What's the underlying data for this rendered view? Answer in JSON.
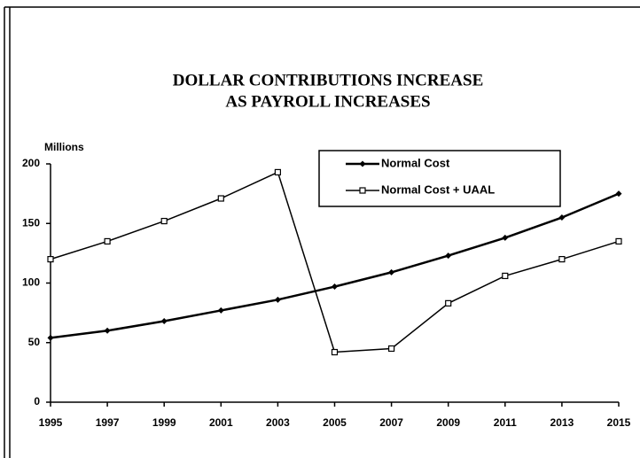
{
  "chart_data": {
    "type": "line",
    "title": "DOLLAR CONTRIBUTIONS INCREASE",
    "subtitle": "AS PAYROLL INCREASES",
    "y_label": "Millions",
    "x": [
      1995,
      1997,
      1999,
      2001,
      2003,
      2005,
      2007,
      2009,
      2011,
      2013,
      2015
    ],
    "xlim": [
      1995,
      2015
    ],
    "xticks": [
      1995,
      1997,
      1999,
      2001,
      2003,
      2005,
      2007,
      2009,
      2011,
      2013,
      2015
    ],
    "ylim": [
      0,
      200
    ],
    "yticks": [
      0,
      50,
      100,
      150,
      200
    ],
    "grid": false,
    "legend": "upper right",
    "series": [
      {
        "name": "Normal Cost",
        "color": "#000000",
        "marker": "filled",
        "values": [
          54,
          60,
          68,
          77,
          86,
          97,
          109,
          123,
          138,
          155,
          175
        ]
      },
      {
        "name": "Normal Cost + UAAL",
        "color": "#000000",
        "marker": "open",
        "values": [
          120,
          135,
          152,
          171,
          193,
          42,
          45,
          83,
          106,
          120,
          135
        ]
      }
    ]
  }
}
